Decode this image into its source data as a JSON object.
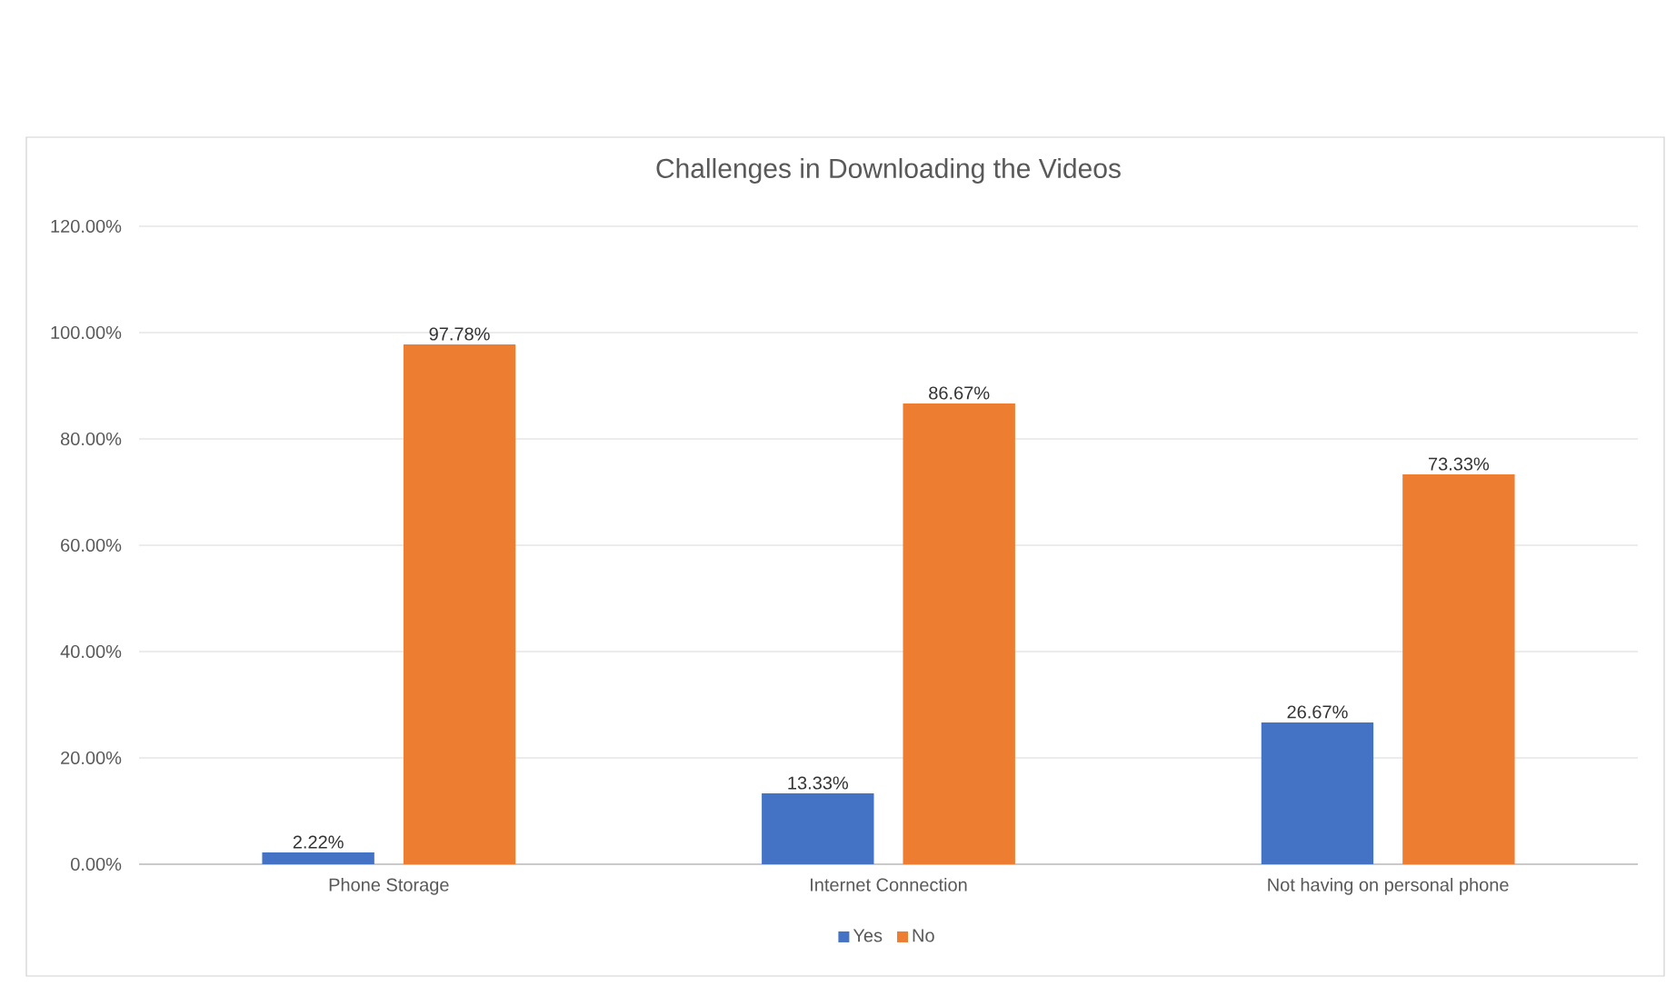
{
  "chart_data": {
    "type": "bar",
    "title": "Challenges in Downloading the Videos",
    "categories": [
      "Phone Storage",
      "Internet Connection",
      "Not having on personal phone"
    ],
    "series": [
      {
        "name": "Yes",
        "color": "#4472c4",
        "values": [
          2.22,
          13.33,
          26.67
        ],
        "value_labels": [
          "2.22%",
          "13.33%",
          "26.67%"
        ]
      },
      {
        "name": "No",
        "color": "#ed7d31",
        "values": [
          97.78,
          86.67,
          73.33
        ],
        "value_labels": [
          "97.78%",
          "86.67%",
          "73.33%"
        ]
      }
    ],
    "ylim": [
      0,
      120
    ],
    "yticks": [
      {
        "value": 0,
        "label": "0.00%"
      },
      {
        "value": 20,
        "label": "20.00%"
      },
      {
        "value": 40,
        "label": "40.00%"
      },
      {
        "value": 60,
        "label": "60.00%"
      },
      {
        "value": 80,
        "label": "80.00%"
      },
      {
        "value": 100,
        "label": "100.00%"
      },
      {
        "value": 120,
        "label": "120.00%"
      }
    ],
    "grid": "y",
    "legend": "bottom"
  }
}
